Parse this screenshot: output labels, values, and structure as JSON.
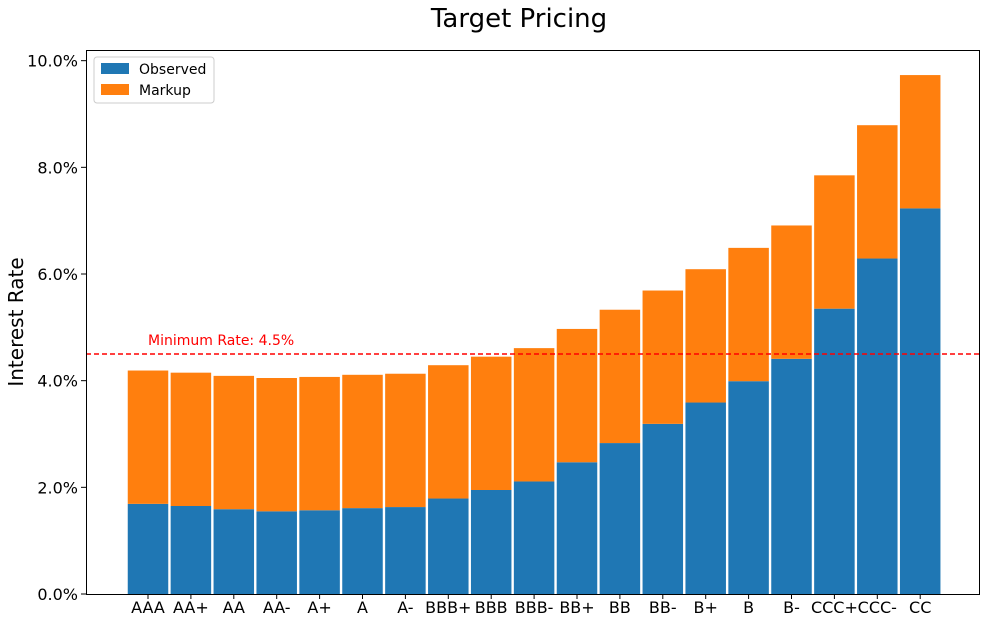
{
  "chart_data": {
    "type": "bar",
    "stacked": true,
    "title": "Target Pricing",
    "xlabel": "",
    "ylabel": "Interest Rate",
    "ylim": [
      0,
      0.102
    ],
    "y_ticks": [
      0,
      0.02,
      0.04,
      0.06,
      0.08,
      0.1
    ],
    "y_tick_labels": [
      "0.0%",
      "2.0%",
      "4.0%",
      "6.0%",
      "8.0%",
      "10.0%"
    ],
    "grid": false,
    "legend_position": "top-left",
    "categories": [
      "AAA",
      "AA+",
      "AA",
      "AA-",
      "A+",
      "A",
      "A-",
      "BBB+",
      "BBB",
      "BBB-",
      "BB+",
      "BB",
      "BB-",
      "B+",
      "B",
      "B-",
      "CCC+",
      "CCC-",
      "CC"
    ],
    "series": [
      {
        "name": "Observed",
        "color": "#1f77b4",
        "values": [
          0.0169,
          0.0165,
          0.0159,
          0.0155,
          0.0157,
          0.0161,
          0.0163,
          0.0179,
          0.0195,
          0.0211,
          0.0247,
          0.0283,
          0.0319,
          0.0359,
          0.0399,
          0.0441,
          0.0535,
          0.0629,
          0.0723
        ]
      },
      {
        "name": "Markup",
        "color": "#ff7f0e",
        "values": [
          0.025,
          0.025,
          0.025,
          0.025,
          0.025,
          0.025,
          0.025,
          0.025,
          0.025,
          0.025,
          0.025,
          0.025,
          0.025,
          0.025,
          0.025,
          0.025,
          0.025,
          0.025,
          0.025
        ]
      }
    ],
    "reference_line": {
      "value": 0.045,
      "label": "Minimum Rate: 4.5%",
      "color": "#ff0000",
      "style": "dashed"
    }
  }
}
